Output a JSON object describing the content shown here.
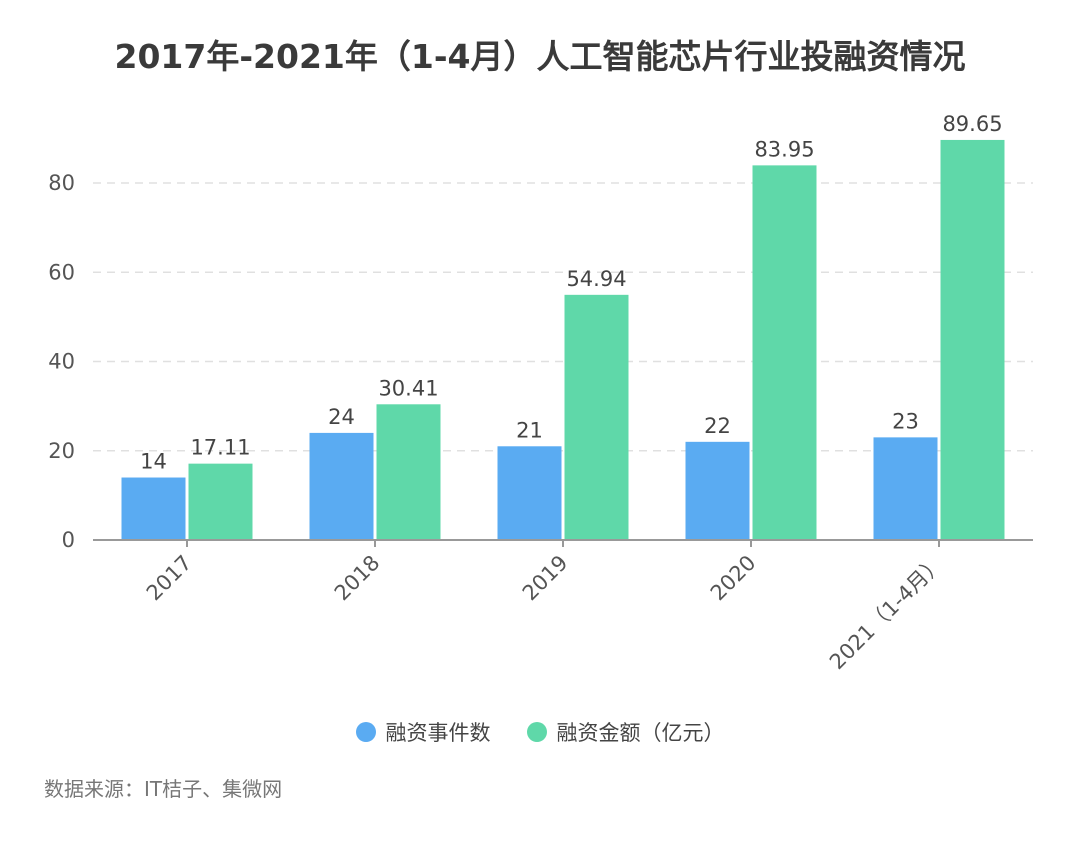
{
  "title": "2017年-2021年（1-4月）人工智能芯片行业投融资情况",
  "source": "数据来源：IT桔子、集微网",
  "colors": {
    "series1": "#5aabf2",
    "series2": "#5fd8a9",
    "grid": "#e0e0e0",
    "axis": "#999999"
  },
  "chart_data": {
    "type": "bar",
    "title": "2017年-2021年（1-4月）人工智能芯片行业投融资情况",
    "categories": [
      "2017",
      "2018",
      "2019",
      "2020",
      "2021（1-4月）"
    ],
    "series": [
      {
        "name": "融资事件数",
        "values": [
          14,
          24,
          21,
          22,
          23
        ],
        "labels": [
          "14",
          "24",
          "21",
          "22",
          "23"
        ]
      },
      {
        "name": "融资金额（亿元）",
        "values": [
          17.11,
          30.41,
          54.94,
          83.95,
          89.65
        ],
        "labels": [
          "17.11",
          "30.41",
          "54.94",
          "83.95",
          "89.65"
        ]
      }
    ],
    "yticks": [
      0,
      20,
      40,
      60,
      80
    ],
    "ylim": [
      0,
      90
    ],
    "grid": true,
    "legend": "bottom-center"
  }
}
